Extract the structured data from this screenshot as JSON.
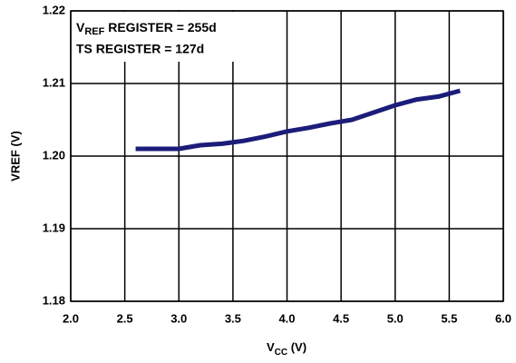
{
  "chart_data": {
    "type": "line",
    "xlabel": {
      "main": "V",
      "sub": "CC",
      "rest": " (V)"
    },
    "ylabel": "VREF (V)",
    "annotations": [
      {
        "main": "V",
        "sub": "REF",
        "rest": " REGISTER = 255d"
      },
      {
        "main": "TS REGISTER = 127d"
      }
    ],
    "x": [
      2.6,
      2.8,
      3.0,
      3.2,
      3.4,
      3.6,
      3.8,
      4.0,
      4.2,
      4.4,
      4.6,
      4.8,
      5.0,
      5.2,
      5.4,
      5.6
    ],
    "series": [
      {
        "name": "VREF",
        "color": "#1c1c7a",
        "values": [
          1.201,
          1.201,
          1.201,
          1.2015,
          1.2017,
          1.2021,
          1.2027,
          1.2034,
          1.2039,
          1.2045,
          1.205,
          1.206,
          1.207,
          1.2078,
          1.2082,
          1.209
        ]
      }
    ],
    "xlim": [
      2,
      6
    ],
    "xticks": [
      {
        "value": 2,
        "label": "2.0"
      },
      2.5,
      {
        "value": 3,
        "label": "3.0"
      },
      3.5,
      {
        "value": 4,
        "label": "4.0"
      },
      4.5,
      {
        "value": 5,
        "label": "5.0"
      },
      5.5,
      {
        "value": 6,
        "label": "6.0"
      }
    ],
    "ylim": [
      1.18,
      1.22
    ],
    "yticks": [
      1.18,
      1.19,
      {
        "value": 1.2,
        "label": "1.20"
      },
      1.21,
      1.22
    ],
    "grid": true
  }
}
